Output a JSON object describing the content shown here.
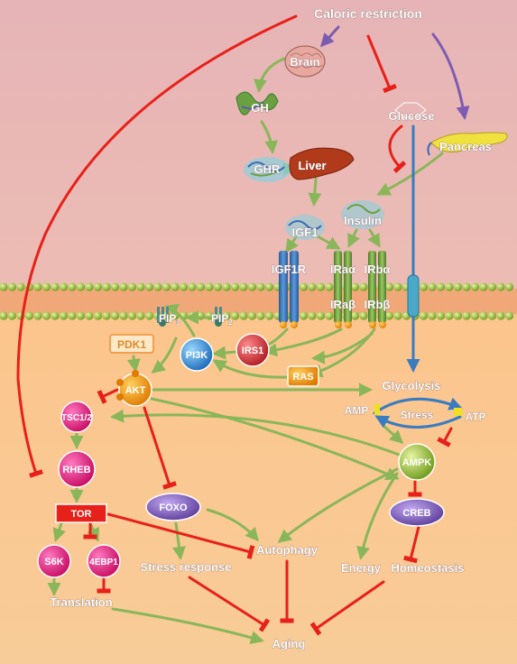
{
  "title": "Caloric restriction",
  "nodes": {
    "brain": "Brain",
    "gh": "GH",
    "ghr": "GHR",
    "liver": "Liver",
    "glucose": "Glucose",
    "pancreas": "Pancreas",
    "insulin": "Insulin",
    "igf1": "IGF1",
    "igf1r": "IGF1R",
    "ira_alpha": "IRaα",
    "irb_alpha": "IRbα",
    "ira_beta": "IRaβ",
    "irb_beta": "IRbβ",
    "pip3": "PIP",
    "pip3_sub": "3",
    "pip2": "PIP",
    "pip2_sub": "2",
    "pdk1": "PDK1",
    "pi3k": "PI3K",
    "irs1": "IRS1",
    "ras": "RAS",
    "akt": "AKT",
    "tsc12": "TSC1/2",
    "rheb": "RHEB",
    "tor": "TOR",
    "s6k": "S6K",
    "ebp1": "4EBP1",
    "foxo": "FOXO",
    "glycolysis": "Glycolysis",
    "amp": "AMP",
    "atp": "ATP",
    "stress": "Stress",
    "ampk": "AMPK",
    "creb": "CREB",
    "autophagy": "Autophagy",
    "stress_response": "Stress response",
    "energy": "Energy",
    "homeostasis": "Homeostasis",
    "translation": "Translation",
    "aging": "Aging"
  },
  "colors": {
    "background_top": "#e8b8b8",
    "background_bottom": "#fbc890",
    "activation_arrow": "#8ab65a",
    "inhibition_arrow": "#e8201a",
    "ampk_purple": "#7c5cb0",
    "magenta_node": "#e0187a",
    "akt_orange": "#f49a10",
    "receptor_blue": "#3a7cc0",
    "receptor_green": "#6a9c3a"
  }
}
